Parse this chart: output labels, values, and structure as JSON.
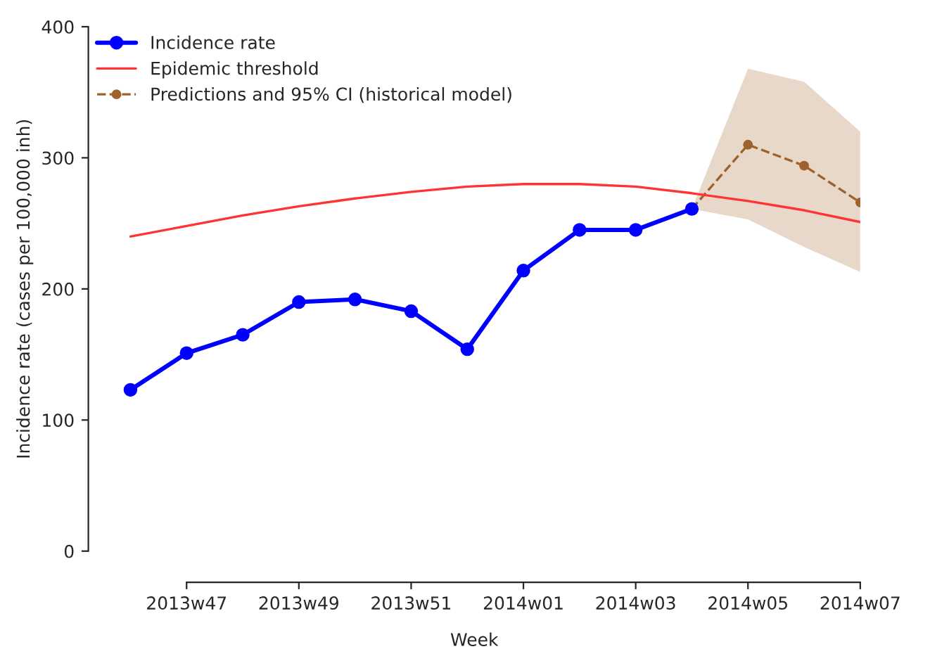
{
  "chart_data": {
    "type": "line",
    "xlabel": "Week",
    "ylabel": "Incidence rate (cases per 100,000 inh)",
    "categories": [
      null,
      "2013w47",
      null,
      "2013w49",
      null,
      "2013w51",
      null,
      "2014w01",
      null,
      "2014w03",
      null,
      "2014w05",
      null,
      "2014w07"
    ],
    "series": [
      {
        "name": "Incidence rate",
        "color": "#0000ff",
        "marker": "circle",
        "line_style": "solid",
        "values": [
          123,
          151,
          165,
          190,
          192,
          183,
          154,
          214,
          245,
          245,
          261,
          null,
          null,
          null
        ]
      },
      {
        "name": "Epidemic threshold",
        "color": "#ff3333",
        "marker": "none",
        "line_style": "solid",
        "values": [
          240,
          248,
          256,
          263,
          269,
          274,
          278,
          280,
          280,
          278,
          273,
          267,
          260,
          251
        ]
      },
      {
        "name": "Predictions and 95% CI (historical model)",
        "color": "#a0622d",
        "marker": "circle",
        "line_style": "dashed",
        "values": [
          null,
          null,
          null,
          null,
          null,
          null,
          null,
          null,
          null,
          null,
          261,
          310,
          294,
          266
        ],
        "lower": [
          null,
          null,
          null,
          null,
          null,
          null,
          null,
          null,
          null,
          null,
          261,
          253,
          232,
          213
        ],
        "upper": [
          null,
          null,
          null,
          null,
          null,
          null,
          null,
          null,
          null,
          null,
          261,
          368,
          358,
          320
        ]
      }
    ],
    "ylim": [
      0,
      400
    ],
    "yticks": [
      0,
      100,
      200,
      300,
      400
    ],
    "grid": false,
    "legend": "top left"
  }
}
